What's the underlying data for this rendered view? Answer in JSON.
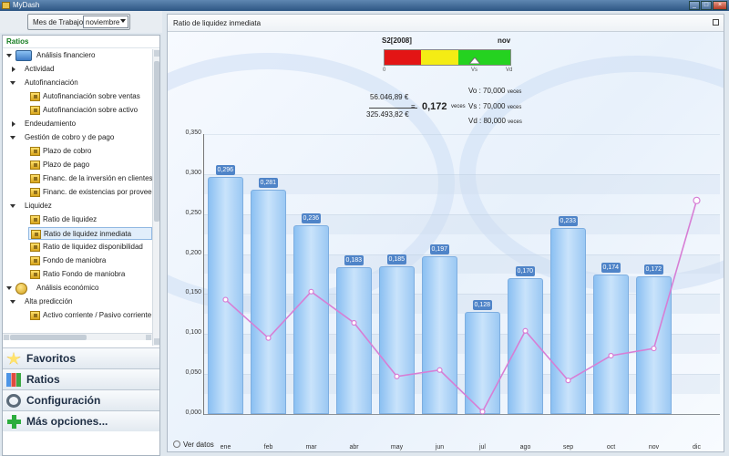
{
  "window": {
    "title": "MyDash"
  },
  "topbar": {
    "mes_label": "Mes de Trabajo",
    "mes_value": "noviembre"
  },
  "sidebar": {
    "header": "Ratios",
    "tree": [
      {
        "label": "Análisis financiero",
        "level": 0,
        "expanded": true,
        "icon": "folder-icon"
      },
      {
        "label": "Actividad",
        "level": 1,
        "expanded": false
      },
      {
        "label": "Autofinanciación",
        "level": 1,
        "expanded": true
      },
      {
        "label": "Autofinanciación sobre ventas",
        "level": 2,
        "icon": "ratio-icon"
      },
      {
        "label": "Autofinanciación sobre activo",
        "level": 2,
        "icon": "ratio-icon"
      },
      {
        "label": "Endeudamiento",
        "level": 1,
        "expanded": false
      },
      {
        "label": "Gestión de cobro y de pago",
        "level": 1,
        "expanded": true
      },
      {
        "label": "Plazo de cobro",
        "level": 2,
        "icon": "ratio-icon"
      },
      {
        "label": "Plazo de pago",
        "level": 2,
        "icon": "ratio-icon"
      },
      {
        "label": "Financ. de la inversión en clientes",
        "level": 2,
        "icon": "ratio-icon"
      },
      {
        "label": "Financ. de existencias por proveedores",
        "level": 2,
        "icon": "ratio-icon"
      },
      {
        "label": "Liquidez",
        "level": 1,
        "expanded": true
      },
      {
        "label": "Ratio de liquidez",
        "level": 2,
        "icon": "ratio-icon"
      },
      {
        "label": "Ratio de liquidez inmediata",
        "level": 2,
        "icon": "ratio-icon",
        "selected": true
      },
      {
        "label": "Ratio de liquidez disponibilidad",
        "level": 2,
        "icon": "ratio-icon"
      },
      {
        "label": "Fondo de maniobra",
        "level": 2,
        "icon": "ratio-icon"
      },
      {
        "label": "Ratio Fondo de maniobra",
        "level": 2,
        "icon": "ratio-icon"
      },
      {
        "label": "Análisis económico",
        "level": 0,
        "expanded": true,
        "icon": "coins-icon"
      },
      {
        "label": "Alta predicción",
        "level": 1,
        "expanded": true
      },
      {
        "label": "Activo corriente / Pasivo corriente",
        "level": 2,
        "icon": "ratio-icon"
      }
    ],
    "nav": [
      {
        "label": "Favoritos",
        "icon": "star-icon"
      },
      {
        "label": "Ratios",
        "icon": "ratios-icon"
      },
      {
        "label": "Configuración",
        "icon": "config-icon"
      },
      {
        "label": "Más opciones...",
        "icon": "plus-icon"
      }
    ]
  },
  "panel": {
    "title": "Ratio de liquidez inmediata",
    "gauge": {
      "period": "S2[2008]",
      "month": "nov",
      "ticks": [
        "0",
        "Vs",
        "Vd"
      ],
      "colors": [
        "#e31515",
        "#f4ec14",
        "#25d220"
      ]
    },
    "formula": {
      "numerator": "56.046,89 €",
      "denominator": "325.493,82 €",
      "equals": "=",
      "result": "0,172",
      "unit": "veces"
    },
    "thresholds": [
      {
        "name": "Vo :",
        "value": "70,000",
        "unit": "veces"
      },
      {
        "name": "Vs :",
        "value": "70,000",
        "unit": "veces"
      },
      {
        "name": "Vd :",
        "value": "80,000",
        "unit": "veces"
      }
    ],
    "ver_datos": "Ver datos"
  },
  "chart_data": {
    "type": "bar",
    "categories": [
      "ene",
      "feb",
      "mar",
      "abr",
      "may",
      "jun",
      "jul",
      "ago",
      "sep",
      "oct",
      "nov",
      "dic"
    ],
    "values": [
      0.296,
      0.281,
      0.236,
      0.183,
      0.185,
      0.197,
      0.128,
      0.17,
      0.233,
      0.174,
      0.172,
      null
    ],
    "value_labels": [
      "0,296",
      "0,281",
      "0,236",
      "0,183",
      "0,185",
      "0,197",
      "0,128",
      "0,170",
      "0,233",
      "0,174",
      "0,172",
      ""
    ],
    "line_series": {
      "color": "#d77ed5",
      "values": [
        0.143,
        0.095,
        0.153,
        0.114,
        0.047,
        0.055,
        0.003,
        0.104,
        0.042,
        0.073,
        0.082,
        0.267
      ]
    },
    "ylim": [
      0,
      0.35
    ],
    "yticks": [
      "0,000",
      "0,050",
      "0,100",
      "0,150",
      "0,200",
      "0,250",
      "0,300",
      "0,350"
    ],
    "bar_color": "#9ecbf3",
    "label_color": "#4f84c8"
  }
}
